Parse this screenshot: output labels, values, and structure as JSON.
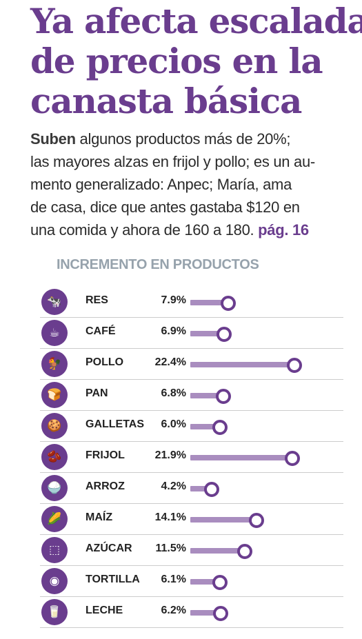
{
  "headline": {
    "lines": [
      "Ya afecta escalada",
      "de precios en la",
      "canasta básica"
    ]
  },
  "deck": {
    "lead_bold": "Suben",
    "line1_rest": " algunos productos más de 20%;",
    "line2": "las mayores alzas en frijol y pollo; es un au-",
    "line3": "mento generalizado: Anpec; María, ama",
    "line4": "de casa, dice que antes gastaba $120 en",
    "line5": "una comida y ahora de 160 a 180.",
    "page_ref": "pág. 16"
  },
  "colors": {
    "accent": "#6a3d8e",
    "bar": "#a98dbf",
    "chart_title": "#96a2ac"
  },
  "chart_data": {
    "type": "bar",
    "orientation": "horizontal",
    "title": "INCREMENTO EN PRODUCTOS",
    "categories": [
      "RES",
      "CAFÉ",
      "POLLO",
      "PAN",
      "GALLETAS",
      "FRIJOL",
      "ARROZ",
      "MAÍZ",
      "AZÚCAR",
      "TORTILLA",
      "LECHE"
    ],
    "labels": [
      "7.9%",
      "6.9%",
      "22.4%",
      "6.8%",
      "6.0%",
      "21.9%",
      "4.2%",
      "14.1%",
      "11.5%",
      "6.1%",
      "6.2%"
    ],
    "values": [
      7.9,
      6.9,
      22.4,
      6.8,
      6.0,
      21.9,
      4.2,
      14.1,
      11.5,
      6.1,
      6.2
    ],
    "unit": "%",
    "icons": [
      "cow-icon",
      "coffee-cup-icon",
      "rooster-icon",
      "bread-icon",
      "cookies-icon",
      "beans-icon",
      "rice-bowl-icon",
      "corn-icon",
      "sugar-cubes-icon",
      "tortilla-icon",
      "milk-carton-icon"
    ],
    "icon_glyphs": [
      "🐄",
      "☕",
      "🐓",
      "🍞",
      "🍪",
      "🫘",
      "🍚",
      "🌽",
      "⬚",
      "◉",
      "🥛"
    ],
    "grid": false,
    "legend": "none"
  }
}
